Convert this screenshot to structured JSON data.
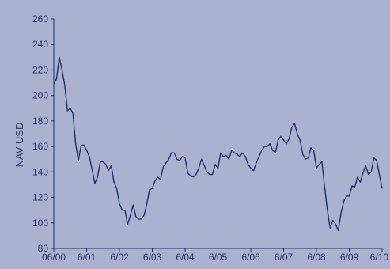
{
  "chart_data": {
    "type": "line",
    "title": "",
    "ylabel": "NAV USD",
    "xlabel": "",
    "ylim": [
      80,
      260
    ],
    "yticks": [
      "80",
      "100",
      "120",
      "140",
      "160",
      "180",
      "200",
      "220",
      "240",
      "260"
    ],
    "xlim": [
      0,
      120
    ],
    "xticks": [
      {
        "label": "06/00",
        "x": 0
      },
      {
        "label": "6/01",
        "x": 12
      },
      {
        "label": "6/02",
        "x": 24
      },
      {
        "label": "6/03",
        "x": 36
      },
      {
        "label": "6/04",
        "x": 48
      },
      {
        "label": "6/05",
        "x": 60
      },
      {
        "label": "6/06",
        "x": 72
      },
      {
        "label": "6/07",
        "x": 84
      },
      {
        "label": "6/08",
        "x": 96
      },
      {
        "label": "6/09",
        "x": 108
      },
      {
        "label": "6/10",
        "x": 120
      }
    ],
    "grid": false,
    "colors": {
      "background": "#aab2cf",
      "line": "#1f2e6b",
      "text": "#1f2e6b"
    },
    "series": [
      {
        "values": [
          209,
          213,
          230,
          220,
          208,
          188,
          190,
          186,
          162,
          149,
          161,
          161,
          157,
          152,
          142,
          131,
          136,
          148,
          148,
          146,
          141,
          145,
          132,
          127,
          115,
          110,
          110,
          99,
          106,
          114,
          105,
          103,
          103,
          106,
          115,
          126,
          127,
          133,
          136,
          134,
          144,
          147,
          150,
          155,
          155,
          150,
          149,
          152,
          151,
          139,
          137,
          136,
          138,
          143,
          150,
          145,
          140,
          138,
          138,
          146,
          143,
          155,
          152,
          153,
          150,
          157,
          155,
          154,
          152,
          155,
          152,
          146,
          143,
          141,
          147,
          152,
          157,
          160,
          160,
          162,
          157,
          155,
          165,
          168,
          165,
          162,
          166,
          175,
          178,
          170,
          165,
          154,
          150,
          151,
          159,
          157,
          143,
          146,
          148,
          128,
          110,
          96,
          102,
          99,
          94,
          108,
          117,
          121,
          121,
          129,
          128,
          136,
          132,
          139,
          145,
          138,
          140,
          151,
          149,
          138,
          127
        ]
      }
    ]
  }
}
